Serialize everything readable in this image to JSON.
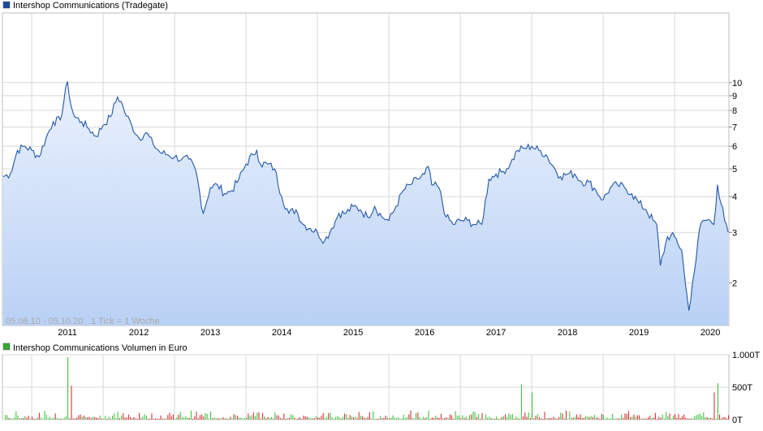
{
  "colors": {
    "price_line": "#2356a8",
    "price_fill_top": "#eaf1fd",
    "price_fill_bottom": "#b9d1f5",
    "volume_up": "#33bb33",
    "volume_down": "#cc2222",
    "grid": "#d8d8d8",
    "legend_price_box": "#1a4a9c",
    "legend_volume_box": "#33aa33",
    "range_text": "#aaaaaa"
  },
  "chart_data": [
    {
      "type": "area",
      "title": "Intershop Communications (Tradegate)",
      "legend": [
        {
          "name": "Intershop Communications (Tradegate)",
          "color": "#1a4a9c"
        }
      ],
      "range_note": "05.08.10 - 05.10.20",
      "tick_note": "1 Tick = 1 Woche",
      "y_scale": "log",
      "ylim": [
        1.42,
        17.5
      ],
      "y_ticks": [
        2,
        3,
        4,
        5,
        6,
        7,
        8,
        9,
        10
      ],
      "y_tick_labels": [
        "2",
        "3",
        "4",
        "5",
        "6",
        "7",
        "8",
        "9",
        "10"
      ],
      "x_ticks": [
        "2011",
        "2012",
        "2013",
        "2014",
        "2015",
        "2016",
        "2017",
        "2018",
        "2019",
        "2020"
      ],
      "xlim": [
        2010.59,
        2020.76
      ],
      "grid": true,
      "series": [
        {
          "x": [
            2010.6,
            2010.7,
            2010.8,
            2010.9,
            2011.0,
            2011.1,
            2011.2,
            2011.3,
            2011.4,
            2011.5,
            2011.55,
            2011.6,
            2011.7,
            2011.8,
            2011.9,
            2012.0,
            2012.1,
            2012.2,
            2012.25,
            2012.3,
            2012.4,
            2012.5,
            2012.6,
            2012.7,
            2012.8,
            2012.9,
            2013.0,
            2013.1,
            2013.2,
            2013.3,
            2013.4,
            2013.5,
            2013.6,
            2013.7,
            2013.8,
            2013.9,
            2014.0,
            2014.1,
            2014.15,
            2014.2,
            2014.3,
            2014.4,
            2014.5,
            2014.6,
            2014.7,
            2014.8,
            2014.9,
            2015.0,
            2015.1,
            2015.2,
            2015.3,
            2015.4,
            2015.5,
            2015.6,
            2015.7,
            2015.8,
            2015.9,
            2016.0,
            2016.1,
            2016.2,
            2016.3,
            2016.4,
            2016.5,
            2016.55,
            2016.6,
            2016.7,
            2016.8,
            2016.9,
            2017.0,
            2017.1,
            2017.2,
            2017.3,
            2017.4,
            2017.5,
            2017.6,
            2017.7,
            2017.8,
            2017.9,
            2018.0,
            2018.1,
            2018.2,
            2018.3,
            2018.4,
            2018.5,
            2018.6,
            2018.7,
            2018.8,
            2018.9,
            2019.0,
            2019.1,
            2019.2,
            2019.3,
            2019.4,
            2019.5,
            2019.6,
            2019.7,
            2019.75,
            2019.8,
            2019.9,
            2020.0,
            2020.1,
            2020.15,
            2020.2,
            2020.25,
            2020.3,
            2020.35,
            2020.4,
            2020.5,
            2020.55,
            2020.6,
            2020.7,
            2020.75
          ],
          "y": [
            4.7,
            4.8,
            5.8,
            6.0,
            5.8,
            5.5,
            6.4,
            7.3,
            7.4,
            10.1,
            8.3,
            7.6,
            7.3,
            6.9,
            6.5,
            7.1,
            7.6,
            8.9,
            8.6,
            7.9,
            7.1,
            6.4,
            6.7,
            6.1,
            5.7,
            5.6,
            5.5,
            5.4,
            5.4,
            4.9,
            3.5,
            4.3,
            4.4,
            4.1,
            4.2,
            4.6,
            5.2,
            5.6,
            5.8,
            5.2,
            5.2,
            5.0,
            4.0,
            3.5,
            3.6,
            3.2,
            3.1,
            3.0,
            2.8,
            3.1,
            3.5,
            3.5,
            3.7,
            3.6,
            3.4,
            3.7,
            3.4,
            3.3,
            3.7,
            4.2,
            4.4,
            4.6,
            4.8,
            5.1,
            4.4,
            4.3,
            3.4,
            3.2,
            3.3,
            3.3,
            3.2,
            3.2,
            4.6,
            4.8,
            4.9,
            5.2,
            5.8,
            5.9,
            6.0,
            5.8,
            5.6,
            5.1,
            4.7,
            4.8,
            4.8,
            4.5,
            4.5,
            4.2,
            3.9,
            4.3,
            4.4,
            4.3,
            4.1,
            3.8,
            3.6,
            3.3,
            3.2,
            2.3,
            2.9,
            2.9,
            2.6,
            2.0,
            1.6,
            2.0,
            2.4,
            3.1,
            3.3,
            3.3,
            3.2,
            4.4,
            3.3,
            3.0
          ]
        }
      ]
    },
    {
      "type": "bar",
      "title": "Intershop Communications Volumen in Euro",
      "legend": [
        {
          "name": "Intershop Communications Volumen in Euro",
          "color": "#33aa33"
        }
      ],
      "y_ticks": [
        0,
        500,
        1000
      ],
      "y_tick_labels": [
        "0T",
        "500T",
        "1.000T"
      ],
      "ylim": [
        0,
        1000
      ],
      "grid": true,
      "peaks": [
        {
          "x": 2011.5,
          "value": 960
        },
        {
          "x": 2011.55,
          "value": 520
        },
        {
          "x": 2017.85,
          "value": 540
        },
        {
          "x": 2018.0,
          "value": 420
        },
        {
          "x": 2020.6,
          "value": 560
        },
        {
          "x": 2020.55,
          "value": 420
        }
      ],
      "typical_value": 90
    }
  ]
}
